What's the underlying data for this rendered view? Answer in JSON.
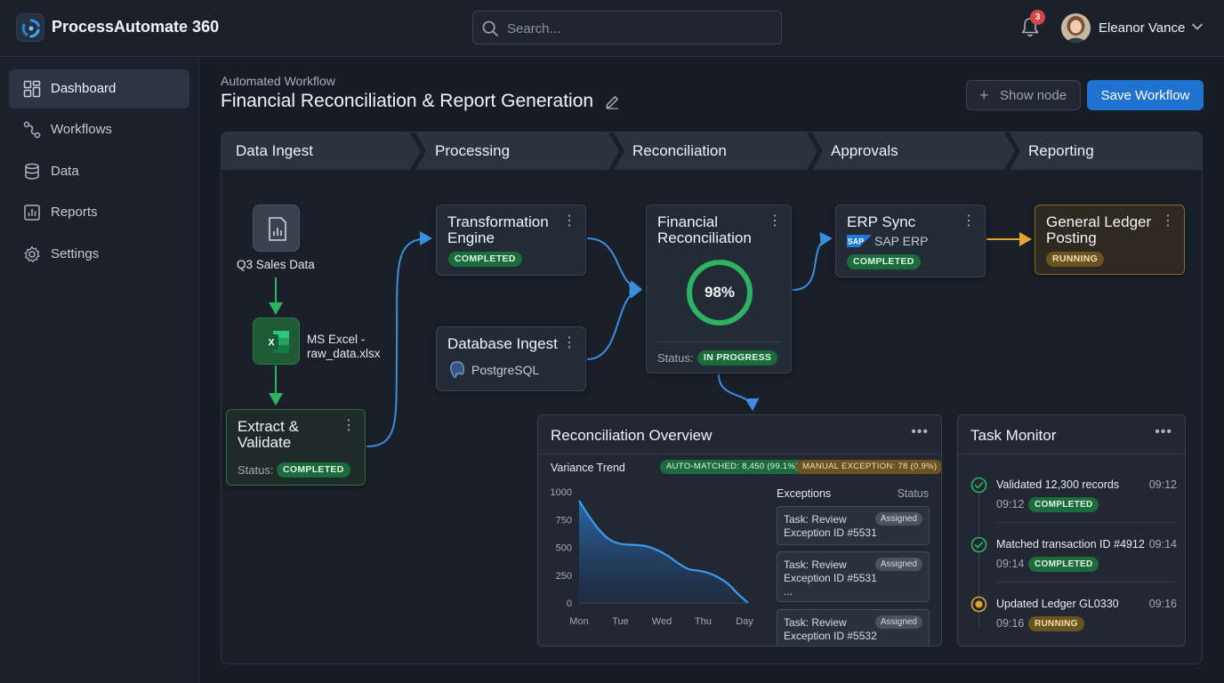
{
  "app": {
    "title": "ProcessAutomate 360"
  },
  "search": {
    "placeholder": "Search..."
  },
  "notifications": {
    "count": "3"
  },
  "user": {
    "name": "Eleanor Vance"
  },
  "sidebar": {
    "items": [
      {
        "label": "Dashboard",
        "icon": "grid-icon",
        "active": true
      },
      {
        "label": "Workflows",
        "icon": "workflow-icon"
      },
      {
        "label": "Data",
        "icon": "database-icon"
      },
      {
        "label": "Reports",
        "icon": "report-icon"
      },
      {
        "label": "Settings",
        "icon": "gear-icon"
      }
    ]
  },
  "page": {
    "kicker": "Automated Workflow",
    "title": "Financial Reconciliation & Report Generation",
    "show_node_label": "Show node",
    "save_label": "Save Workflow"
  },
  "stages": [
    "Data Ingest",
    "Processing",
    "Reconciliation",
    "Approvals",
    "Reporting"
  ],
  "nodes": {
    "source": {
      "label": "Q3 Sales Data"
    },
    "excel": {
      "line1": "MS Excel -",
      "line2": "raw_data.xlsx"
    },
    "extract": {
      "title_line1": "Extract &",
      "title_line2": "Validate",
      "status_label": "Status:",
      "status": "COMPLETED"
    },
    "transform": {
      "title_line1": "Transformation",
      "title_line2": "Engine",
      "status": "COMPLETED"
    },
    "dbingest": {
      "title": "Database Ingest",
      "source": "PostgreSQL"
    },
    "financial": {
      "title_line1": "Financial",
      "title_line2": "Reconciliation",
      "progress_label": "98%",
      "progress": 0.98,
      "status_label": "Status:",
      "status": "IN PROGRESS"
    },
    "erp": {
      "title": "ERP Sync",
      "source": "SAP ERP",
      "logo_text": "SAP",
      "status": "COMPLETED"
    },
    "ledger": {
      "title_line1": "General Ledger",
      "title_line2": "Posting",
      "status": "RUNNING"
    }
  },
  "overview": {
    "title": "Reconciliation Overview",
    "variance_label": "Variance Trend",
    "auto_matched": "AUTO-MATCHED: 8,450 (99.1%)",
    "manual_exception": "MANUAL EXCEPTION: 78 (0.9%)",
    "exceptions_header": "Exceptions",
    "status_header": "Status",
    "exceptions": [
      {
        "line1": "Task: Review",
        "line2": "Exception ID #5531",
        "line3": "",
        "status": "Assigned"
      },
      {
        "line1": "Task: Review",
        "line2": "Exception ID #5531",
        "line3": "...",
        "status": "Assigned"
      },
      {
        "line1": "Task: Review",
        "line2": "Exception ID #5532",
        "line3": "",
        "status": "Assigned"
      }
    ]
  },
  "chart_data": {
    "type": "area",
    "title": "Variance Trend",
    "categories": [
      "Mon",
      "Tue",
      "Wed",
      "Thu",
      "Day"
    ],
    "x": [
      0,
      0.25,
      0.5,
      0.75,
      1.0,
      1.25,
      1.5,
      1.75,
      2.0,
      2.25,
      2.5,
      2.75,
      3.0,
      3.25,
      3.5,
      3.75,
      4.0,
      4.25
    ],
    "values": [
      920,
      780,
      660,
      575,
      535,
      525,
      520,
      505,
      470,
      420,
      355,
      305,
      290,
      270,
      230,
      170,
      80,
      0
    ],
    "yticks": [
      1000,
      750,
      500,
      250,
      0
    ],
    "ylim": [
      0,
      1000
    ],
    "xlabel": "",
    "ylabel": "",
    "grid": false
  },
  "tasks": {
    "title": "Task Monitor",
    "items": [
      {
        "text": "Validated 12,300 records",
        "time": "09:12",
        "sub_time": "09:12",
        "status": "COMPLETED",
        "state": "done"
      },
      {
        "text": "Matched transaction ID #4912",
        "time": "09:14",
        "sub_time": "09:14",
        "status": "COMPLETED",
        "state": "done"
      },
      {
        "text": "Updated Ledger GL0330",
        "time": "09:16",
        "sub_time": "09:16",
        "status": "RUNNING",
        "state": "running"
      }
    ]
  },
  "colors": {
    "accent": "#1f72cf",
    "success": "#2fb363",
    "running": "#e3a62d",
    "wire": "#3b8ee0",
    "background": "#171d26"
  }
}
